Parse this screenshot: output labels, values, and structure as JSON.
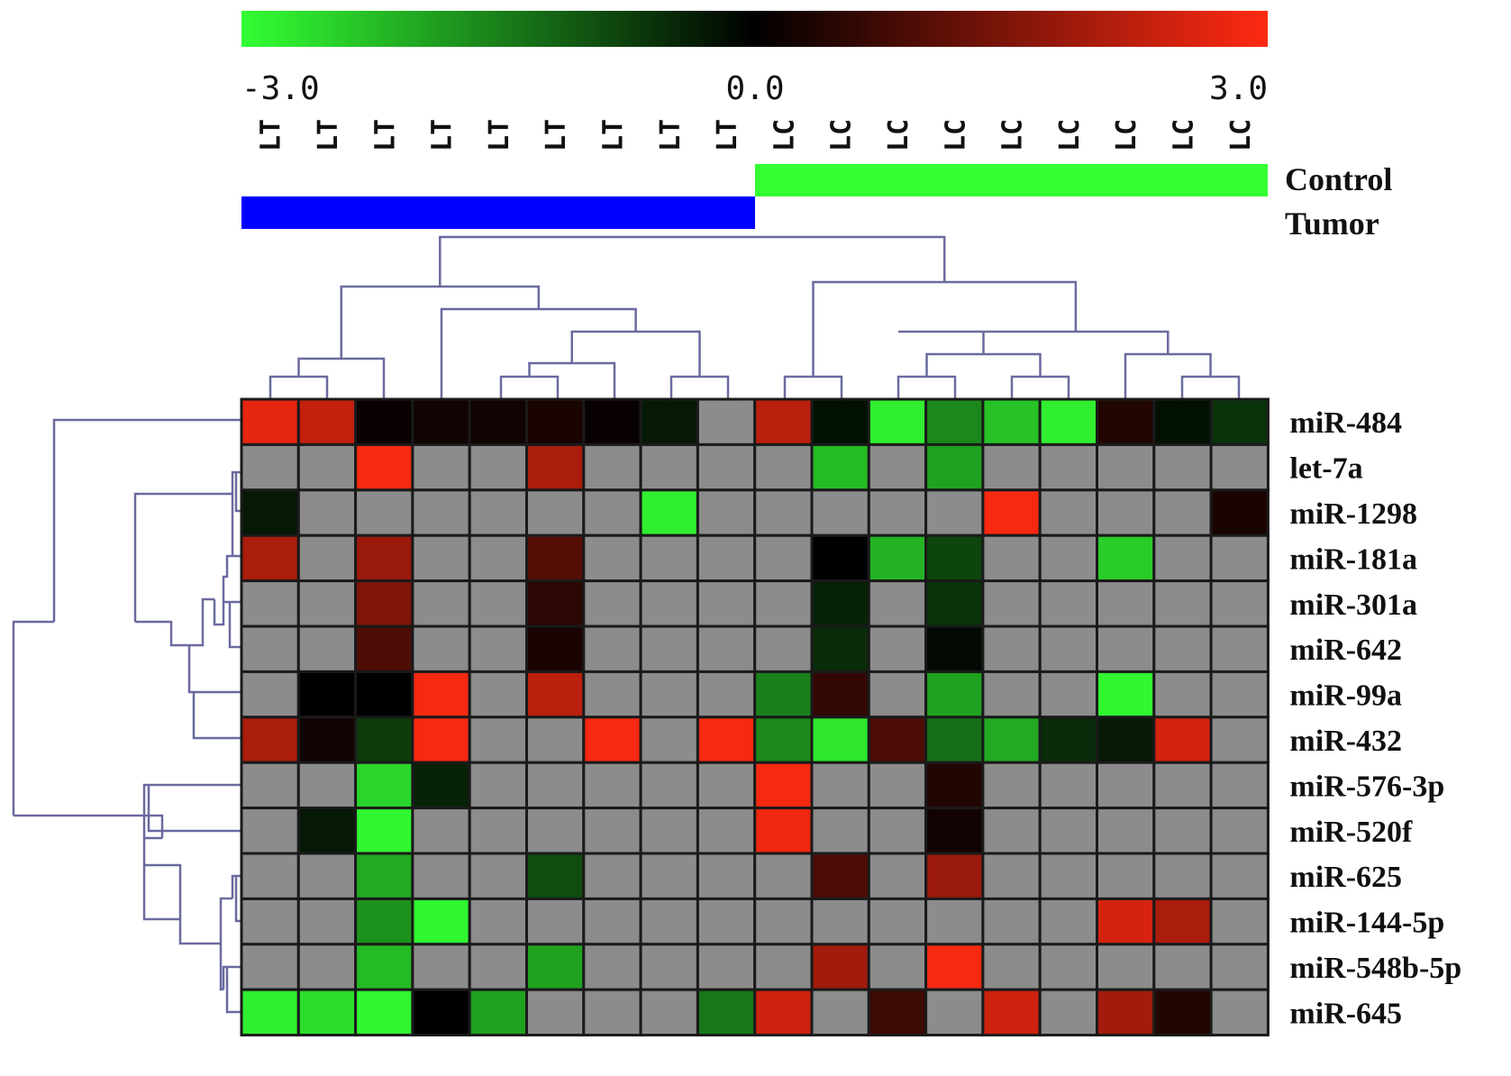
{
  "chart_data": {
    "type": "heatmap",
    "color_scale": {
      "min": -3.0,
      "mid": 0.0,
      "max": 3.0,
      "tick_labels": [
        "-3.0",
        "0.0",
        "3.0"
      ],
      "low_color": "#33ff33",
      "mid_color": "#000000",
      "high_color": "#ff2a12",
      "missing_color": "#8c8c8c"
    },
    "columns": [
      "LT",
      "LT",
      "LT",
      "LT",
      "LT",
      "LT",
      "LT",
      "LT",
      "LT",
      "LC",
      "LC",
      "LC",
      "LC",
      "LC",
      "LC",
      "LC",
      "LC",
      "LC"
    ],
    "groups": [
      {
        "name": "Control",
        "color": "#33ff33",
        "columns": [
          9,
          17
        ]
      },
      {
        "name": "Tumor",
        "color": "#0000ff",
        "columns": [
          0,
          8
        ]
      }
    ],
    "rows": [
      "miR-484",
      "let-7a",
      "miR-1298",
      "miR-181a",
      "miR-301a",
      "miR-642",
      "miR-99a",
      "miR-432",
      "miR-576-3p",
      "miR-520f",
      "miR-625",
      "miR-144-5p",
      "miR-548b-5p",
      "miR-645"
    ],
    "values": [
      [
        2.7,
        2.3,
        0.1,
        0.2,
        0.2,
        0.3,
        0.1,
        -0.3,
        null,
        2.2,
        -0.2,
        -2.8,
        -1.6,
        -2.3,
        -2.8,
        0.4,
        -0.2,
        -0.6
      ],
      [
        null,
        null,
        2.9,
        null,
        null,
        2.0,
        null,
        null,
        null,
        null,
        -2.2,
        null,
        -1.9,
        null,
        null,
        null,
        null,
        null
      ],
      [
        -0.3,
        null,
        null,
        null,
        null,
        null,
        null,
        -2.8,
        null,
        null,
        null,
        null,
        null,
        2.9,
        null,
        null,
        null,
        0.3
      ],
      [
        2.0,
        null,
        1.8,
        null,
        null,
        1.0,
        null,
        null,
        null,
        null,
        0.0,
        -2.1,
        -0.8,
        null,
        null,
        -2.4,
        null,
        null
      ],
      [
        null,
        null,
        1.5,
        null,
        null,
        0.5,
        null,
        null,
        null,
        null,
        -0.4,
        null,
        -0.6,
        null,
        null,
        null,
        null,
        null
      ],
      [
        null,
        null,
        0.9,
        null,
        null,
        0.3,
        null,
        null,
        null,
        null,
        -0.5,
        null,
        -0.1,
        null,
        null,
        null,
        null,
        null
      ],
      [
        null,
        0.0,
        0.0,
        2.9,
        null,
        2.2,
        null,
        null,
        null,
        -1.5,
        0.6,
        null,
        -1.9,
        null,
        null,
        -2.9,
        null,
        null
      ],
      [
        2.0,
        0.2,
        -0.7,
        2.9,
        null,
        null,
        2.9,
        null,
        2.9,
        -1.6,
        -2.7,
        0.9,
        -1.3,
        -2.0,
        -0.5,
        -0.3,
        2.5,
        null
      ],
      [
        null,
        null,
        -2.5,
        -0.4,
        null,
        null,
        null,
        null,
        null,
        2.9,
        null,
        null,
        0.4,
        null,
        null,
        null,
        null,
        null
      ],
      [
        null,
        -0.3,
        -2.9,
        null,
        null,
        null,
        null,
        null,
        null,
        2.8,
        null,
        null,
        0.2,
        null,
        null,
        null,
        null,
        null
      ],
      [
        null,
        null,
        -2.0,
        null,
        null,
        -0.9,
        null,
        null,
        null,
        null,
        0.9,
        null,
        1.8,
        null,
        null,
        null,
        null,
        null
      ],
      [
        null,
        null,
        -1.7,
        -2.9,
        null,
        null,
        null,
        null,
        null,
        null,
        null,
        null,
        null,
        null,
        null,
        2.5,
        2.0,
        null
      ],
      [
        null,
        null,
        -2.2,
        null,
        null,
        -1.9,
        null,
        null,
        null,
        null,
        1.9,
        null,
        2.9,
        null,
        null,
        null,
        null,
        null
      ],
      [
        -2.8,
        -2.6,
        -2.9,
        0.0,
        -1.9,
        null,
        null,
        null,
        -1.4,
        2.4,
        null,
        0.7,
        null,
        2.4,
        null,
        1.9,
        0.4,
        null
      ]
    ]
  }
}
